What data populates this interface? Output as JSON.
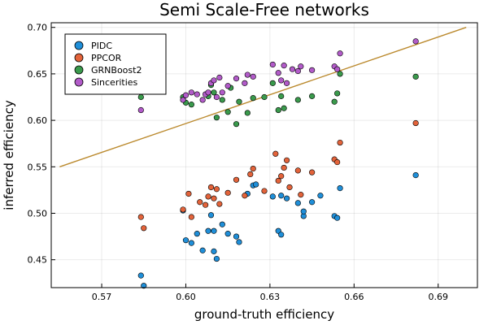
{
  "chart_data": {
    "type": "scatter",
    "title": "Semi Scale-Free networks",
    "xlabel": "ground-truth efficiency",
    "ylabel": "inferred efficiency",
    "xlim": [
      0.552,
      0.704
    ],
    "ylim": [
      0.42,
      0.705
    ],
    "xticks": [
      0.57,
      0.6,
      0.63,
      0.66,
      0.69
    ],
    "xtick_labels": [
      "0.57",
      "0.60",
      "0.63",
      "0.66",
      "0.69"
    ],
    "yticks": [
      0.45,
      0.5,
      0.55,
      0.6,
      0.65,
      0.7
    ],
    "ytick_labels": [
      "0.45",
      "0.50",
      "0.55",
      "0.60",
      "0.65",
      "0.70"
    ],
    "grid": true,
    "legend_position": "top-left",
    "reference_line": {
      "x": [
        0.555,
        0.7
      ],
      "y": [
        0.55,
        0.7
      ],
      "color": "#bb8a2e"
    },
    "series": [
      {
        "name": "PIDC",
        "color": "#1f8fd9",
        "points": [
          [
            0.584,
            0.433
          ],
          [
            0.585,
            0.422
          ],
          [
            0.599,
            0.503
          ],
          [
            0.6,
            0.471
          ],
          [
            0.602,
            0.468
          ],
          [
            0.604,
            0.478
          ],
          [
            0.606,
            0.46
          ],
          [
            0.608,
            0.481
          ],
          [
            0.609,
            0.498
          ],
          [
            0.61,
            0.481
          ],
          [
            0.61,
            0.459
          ],
          [
            0.611,
            0.451
          ],
          [
            0.613,
            0.488
          ],
          [
            0.615,
            0.478
          ],
          [
            0.618,
            0.475
          ],
          [
            0.619,
            0.469
          ],
          [
            0.622,
            0.521
          ],
          [
            0.624,
            0.53
          ],
          [
            0.625,
            0.531
          ],
          [
            0.631,
            0.518
          ],
          [
            0.633,
            0.481
          ],
          [
            0.634,
            0.519
          ],
          [
            0.634,
            0.477
          ],
          [
            0.636,
            0.516
          ],
          [
            0.64,
            0.511
          ],
          [
            0.642,
            0.497
          ],
          [
            0.642,
            0.502
          ],
          [
            0.645,
            0.512
          ],
          [
            0.648,
            0.519
          ],
          [
            0.653,
            0.497
          ],
          [
            0.654,
            0.495
          ],
          [
            0.655,
            0.527
          ],
          [
            0.682,
            0.541
          ]
        ]
      },
      {
        "name": "PPCOR",
        "color": "#e3633a",
        "points": [
          [
            0.584,
            0.496
          ],
          [
            0.585,
            0.484
          ],
          [
            0.599,
            0.504
          ],
          [
            0.601,
            0.521
          ],
          [
            0.602,
            0.496
          ],
          [
            0.605,
            0.512
          ],
          [
            0.607,
            0.509
          ],
          [
            0.608,
            0.518
          ],
          [
            0.61,
            0.516
          ],
          [
            0.609,
            0.528
          ],
          [
            0.611,
            0.526
          ],
          [
            0.612,
            0.51
          ],
          [
            0.615,
            0.522
          ],
          [
            0.618,
            0.536
          ],
          [
            0.621,
            0.519
          ],
          [
            0.623,
            0.542
          ],
          [
            0.624,
            0.548
          ],
          [
            0.628,
            0.524
          ],
          [
            0.632,
            0.564
          ],
          [
            0.633,
            0.535
          ],
          [
            0.634,
            0.54
          ],
          [
            0.635,
            0.549
          ],
          [
            0.636,
            0.557
          ],
          [
            0.637,
            0.528
          ],
          [
            0.64,
            0.546
          ],
          [
            0.641,
            0.52
          ],
          [
            0.645,
            0.544
          ],
          [
            0.653,
            0.558
          ],
          [
            0.654,
            0.555
          ],
          [
            0.655,
            0.576
          ],
          [
            0.682,
            0.597
          ]
        ]
      },
      {
        "name": "GRNBoost2",
        "color": "#3a9a4c",
        "points": [
          [
            0.584,
            0.625
          ],
          [
            0.599,
            0.625
          ],
          [
            0.6,
            0.619
          ],
          [
            0.602,
            0.617
          ],
          [
            0.608,
            0.626
          ],
          [
            0.609,
            0.638
          ],
          [
            0.61,
            0.63
          ],
          [
            0.611,
            0.603
          ],
          [
            0.613,
            0.622
          ],
          [
            0.615,
            0.609
          ],
          [
            0.616,
            0.635
          ],
          [
            0.618,
            0.596
          ],
          [
            0.619,
            0.62
          ],
          [
            0.622,
            0.608
          ],
          [
            0.624,
            0.624
          ],
          [
            0.628,
            0.625
          ],
          [
            0.631,
            0.64
          ],
          [
            0.633,
            0.611
          ],
          [
            0.634,
            0.626
          ],
          [
            0.635,
            0.613
          ],
          [
            0.64,
            0.622
          ],
          [
            0.645,
            0.626
          ],
          [
            0.653,
            0.62
          ],
          [
            0.654,
            0.629
          ],
          [
            0.655,
            0.65
          ],
          [
            0.682,
            0.647
          ]
        ]
      },
      {
        "name": "Sincerities",
        "color": "#b25bc9",
        "points": [
          [
            0.584,
            0.611
          ],
          [
            0.599,
            0.622
          ],
          [
            0.6,
            0.627
          ],
          [
            0.602,
            0.63
          ],
          [
            0.604,
            0.628
          ],
          [
            0.606,
            0.622
          ],
          [
            0.607,
            0.628
          ],
          [
            0.608,
            0.63
          ],
          [
            0.609,
            0.64
          ],
          [
            0.61,
            0.643
          ],
          [
            0.611,
            0.625
          ],
          [
            0.612,
            0.646
          ],
          [
            0.613,
            0.63
          ],
          [
            0.615,
            0.637
          ],
          [
            0.618,
            0.645
          ],
          [
            0.621,
            0.64
          ],
          [
            0.622,
            0.649
          ],
          [
            0.624,
            0.647
          ],
          [
            0.631,
            0.66
          ],
          [
            0.633,
            0.651
          ],
          [
            0.634,
            0.643
          ],
          [
            0.635,
            0.659
          ],
          [
            0.636,
            0.64
          ],
          [
            0.638,
            0.655
          ],
          [
            0.64,
            0.653
          ],
          [
            0.641,
            0.658
          ],
          [
            0.645,
            0.654
          ],
          [
            0.653,
            0.658
          ],
          [
            0.654,
            0.655
          ],
          [
            0.655,
            0.672
          ],
          [
            0.682,
            0.685
          ]
        ]
      }
    ]
  }
}
